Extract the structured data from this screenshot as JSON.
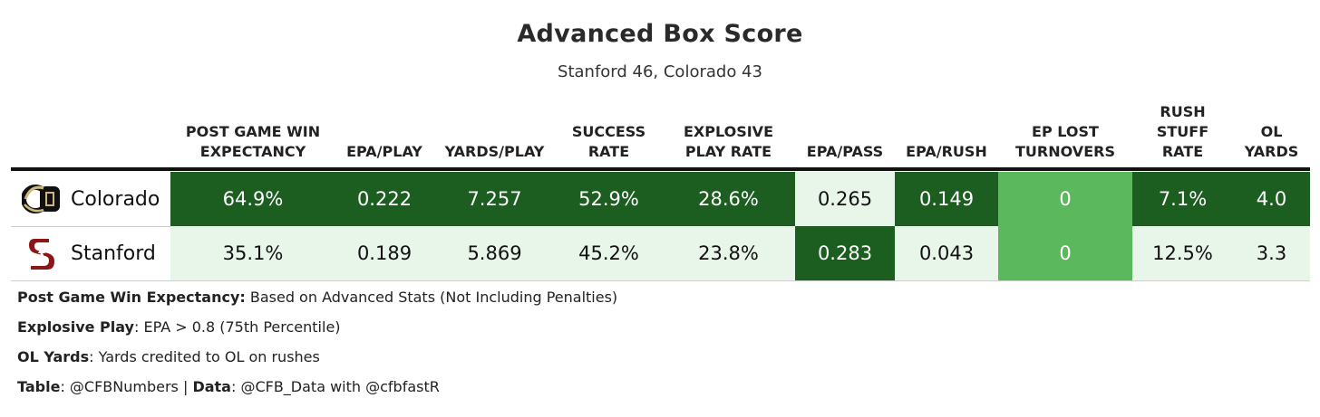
{
  "title": "Advanced Box Score",
  "subtitle": "Stanford 46, Colorado 43",
  "colors": {
    "dark_green": "#1b5e20",
    "mid_green": "#5cb85c",
    "light_green": "#e8f5e9",
    "text_dark": "#111111",
    "text_light": "#ffffff"
  },
  "columns": [
    {
      "key": "wp",
      "lines": [
        "POST GAME WIN",
        "EXPECTANCY"
      ]
    },
    {
      "key": "epa_play",
      "lines": [
        "EPA/PLAY"
      ]
    },
    {
      "key": "yds_play",
      "lines": [
        "YARDS/PLAY"
      ]
    },
    {
      "key": "success",
      "lines": [
        "SUCCESS",
        "RATE"
      ]
    },
    {
      "key": "explosive",
      "lines": [
        "EXPLOSIVE",
        "PLAY RATE"
      ]
    },
    {
      "key": "epa_pass",
      "lines": [
        "EPA/PASS"
      ]
    },
    {
      "key": "epa_rush",
      "lines": [
        "EPA/RUSH"
      ]
    },
    {
      "key": "ep_lost",
      "lines": [
        "EP LOST",
        "TURNOVERS"
      ]
    },
    {
      "key": "stuff",
      "lines": [
        "RUSH",
        "STUFF",
        "RATE"
      ]
    },
    {
      "key": "ol",
      "lines": [
        "OL",
        "YARDS"
      ]
    }
  ],
  "chart_data": {
    "type": "table",
    "title": "Advanced Box Score",
    "subtitle": "Stanford 46, Colorado 43",
    "rows": [
      {
        "team": "Colorado",
        "logo": "colorado-buffalo-logo",
        "cells": [
          {
            "value": "64.9%",
            "shade": "dark"
          },
          {
            "value": "0.222",
            "shade": "dark"
          },
          {
            "value": "7.257",
            "shade": "dark"
          },
          {
            "value": "52.9%",
            "shade": "dark"
          },
          {
            "value": "28.6%",
            "shade": "dark"
          },
          {
            "value": "0.265",
            "shade": "light"
          },
          {
            "value": "0.149",
            "shade": "dark"
          },
          {
            "value": "0",
            "shade": "mid"
          },
          {
            "value": "7.1%",
            "shade": "dark"
          },
          {
            "value": "4.0",
            "shade": "dark"
          }
        ]
      },
      {
        "team": "Stanford",
        "logo": "stanford-s-tree-logo",
        "cells": [
          {
            "value": "35.1%",
            "shade": "light"
          },
          {
            "value": "0.189",
            "shade": "light"
          },
          {
            "value": "5.869",
            "shade": "light"
          },
          {
            "value": "45.2%",
            "shade": "light"
          },
          {
            "value": "23.8%",
            "shade": "light"
          },
          {
            "value": "0.283",
            "shade": "dark"
          },
          {
            "value": "0.043",
            "shade": "light"
          },
          {
            "value": "0",
            "shade": "mid"
          },
          {
            "value": "12.5%",
            "shade": "light"
          },
          {
            "value": "3.3",
            "shade": "light"
          }
        ]
      }
    ]
  },
  "footnotes": [
    {
      "label": "Post Game Win Expectancy:",
      "text": " Based on Advanced Stats (Not Including Penalties)"
    },
    {
      "label": "Explosive Play",
      "text": ": EPA > 0.8 (75th Percentile)"
    },
    {
      "label": "OL Yards",
      "text": ": Yards credited to OL on rushes"
    },
    {
      "label": "Table",
      "text": ": @CFBNumbers | ",
      "label2": "Data",
      "text2": ": @CFB_Data with @cfbfastR"
    }
  ]
}
